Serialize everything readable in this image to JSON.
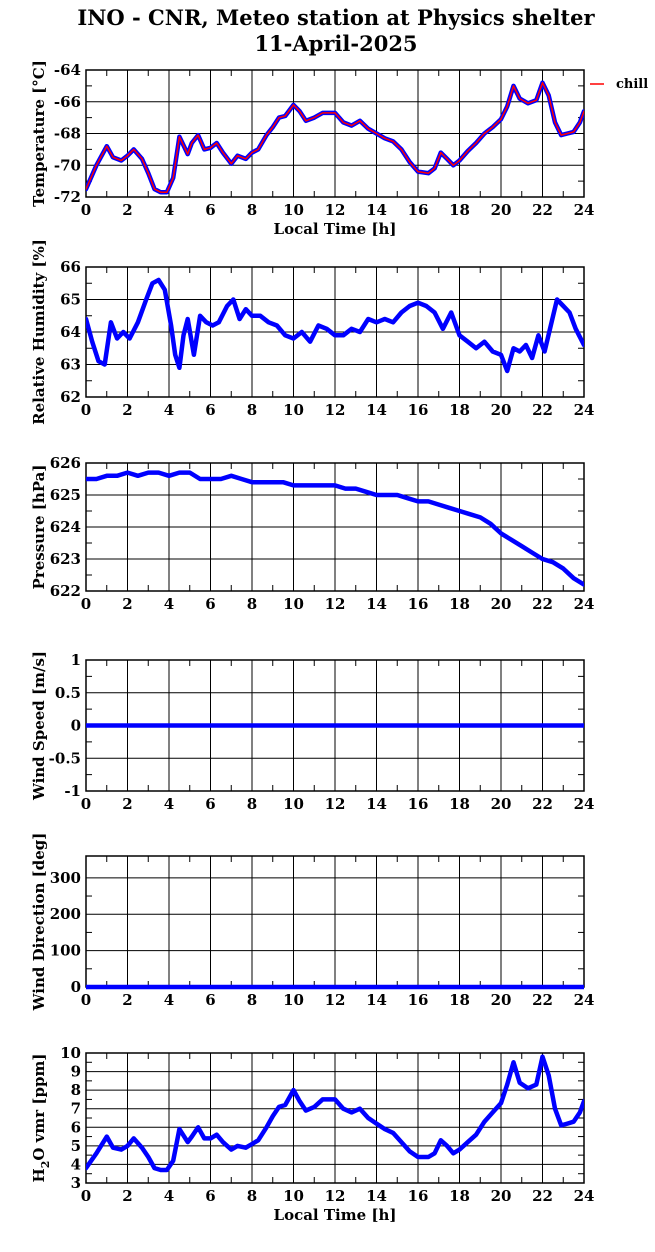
{
  "title_line1": "INO - CNR, Meteo station at Physics shelter",
  "title_line2": "11-April-2025",
  "colors": {
    "series": "#0000ff",
    "chill": "#ff0000",
    "grid": "#000000"
  },
  "chart_data": [
    {
      "type": "line",
      "ylabel": "Temperature [°C]",
      "xlabel": "Local Time [h]",
      "xlim": [
        0,
        24
      ],
      "ylim": [
        -72,
        -64
      ],
      "xticks": [
        0,
        2,
        4,
        6,
        8,
        10,
        12,
        14,
        16,
        18,
        20,
        22,
        24
      ],
      "yticks": [
        -72,
        -70,
        -68,
        -66,
        -64
      ],
      "legend": "top-right, outside plot",
      "series": [
        {
          "name": "chill",
          "color": "#ff0000",
          "x": [
            0,
            0.5,
            1,
            1.3,
            1.7,
            2,
            2.3,
            2.7,
            3,
            3.3,
            3.6,
            3.9,
            4.2,
            4.5,
            4.9,
            5.1,
            5.4,
            5.7,
            6,
            6.3,
            6.6,
            7,
            7.3,
            7.7,
            8,
            8.3,
            8.7,
            9,
            9.3,
            9.6,
            10,
            10.3,
            10.6,
            11,
            11.4,
            12,
            12.4,
            12.8,
            13.2,
            13.6,
            14,
            14.4,
            14.8,
            15.2,
            15.6,
            16,
            16.5,
            16.8,
            17.1,
            17.4,
            17.7,
            18,
            18.4,
            18.8,
            19.2,
            19.6,
            20,
            20.3,
            20.6,
            20.9,
            21.3,
            21.7,
            22,
            22.3,
            22.6,
            22.9,
            23.2,
            23.5,
            23.8,
            24
          ],
          "values": [
            -71.5,
            -70.0,
            -68.8,
            -69.5,
            -69.7,
            -69.4,
            -69.0,
            -69.6,
            -70.5,
            -71.5,
            -71.7,
            -71.7,
            -70.8,
            -68.2,
            -69.3,
            -68.6,
            -68.1,
            -69.0,
            -68.9,
            -68.6,
            -69.2,
            -69.9,
            -69.4,
            -69.6,
            -69.2,
            -69.0,
            -68.1,
            -67.6,
            -67.0,
            -66.9,
            -66.2,
            -66.6,
            -67.2,
            -67.0,
            -66.7,
            -66.7,
            -67.3,
            -67.5,
            -67.2,
            -67.7,
            -68.0,
            -68.3,
            -68.5,
            -69.0,
            -69.8,
            -70.4,
            -70.5,
            -70.2,
            -69.2,
            -69.6,
            -70.0,
            -69.7,
            -69.1,
            -68.6,
            -68.0,
            -67.6,
            -67.1,
            -66.3,
            -65.0,
            -65.8,
            -66.1,
            -65.9,
            -64.8,
            -65.6,
            -67.3,
            -68.1,
            -68.0,
            -67.9,
            -67.3,
            -66.6
          ]
        },
        {
          "name": "",
          "color": "#0000ff",
          "x": [
            0,
            0.5,
            1,
            1.3,
            1.7,
            2,
            2.3,
            2.7,
            3,
            3.3,
            3.6,
            3.9,
            4.2,
            4.5,
            4.9,
            5.1,
            5.4,
            5.7,
            6,
            6.3,
            6.6,
            7,
            7.3,
            7.7,
            8,
            8.3,
            8.7,
            9,
            9.3,
            9.6,
            10,
            10.3,
            10.6,
            11,
            11.4,
            12,
            12.4,
            12.8,
            13.2,
            13.6,
            14,
            14.4,
            14.8,
            15.2,
            15.6,
            16,
            16.5,
            16.8,
            17.1,
            17.4,
            17.7,
            18,
            18.4,
            18.8,
            19.2,
            19.6,
            20,
            20.3,
            20.6,
            20.9,
            21.3,
            21.7,
            22,
            22.3,
            22.6,
            22.9,
            23.2,
            23.5,
            23.8,
            24
          ],
          "values": [
            -71.5,
            -70.0,
            -68.8,
            -69.5,
            -69.7,
            -69.4,
            -69.0,
            -69.6,
            -70.5,
            -71.5,
            -71.7,
            -71.7,
            -70.8,
            -68.2,
            -69.3,
            -68.6,
            -68.1,
            -69.0,
            -68.9,
            -68.6,
            -69.2,
            -69.9,
            -69.4,
            -69.6,
            -69.2,
            -69.0,
            -68.1,
            -67.6,
            -67.0,
            -66.9,
            -66.2,
            -66.6,
            -67.2,
            -67.0,
            -66.7,
            -66.7,
            -67.3,
            -67.5,
            -67.2,
            -67.7,
            -68.0,
            -68.3,
            -68.5,
            -69.0,
            -69.8,
            -70.4,
            -70.5,
            -70.2,
            -69.2,
            -69.6,
            -70.0,
            -69.7,
            -69.1,
            -68.6,
            -68.0,
            -67.6,
            -67.1,
            -66.3,
            -65.0,
            -65.8,
            -66.1,
            -65.9,
            -64.8,
            -65.6,
            -67.3,
            -68.1,
            -68.0,
            -67.9,
            -67.3,
            -66.6
          ]
        }
      ]
    },
    {
      "type": "line",
      "ylabel": "Relative Humidity [%]",
      "xlabel": "",
      "xlim": [
        0,
        24
      ],
      "ylim": [
        62,
        66
      ],
      "xticks": [
        0,
        2,
        4,
        6,
        8,
        10,
        12,
        14,
        16,
        18,
        20,
        22,
        24
      ],
      "yticks": [
        62,
        63,
        64,
        65,
        66
      ],
      "series": [
        {
          "name": "",
          "color": "#0000ff",
          "x": [
            0,
            0.3,
            0.6,
            0.9,
            1.2,
            1.5,
            1.8,
            2.1,
            2.5,
            2.9,
            3.2,
            3.5,
            3.8,
            4.1,
            4.3,
            4.5,
            4.7,
            4.9,
            5.2,
            5.5,
            5.8,
            6.1,
            6.4,
            6.8,
            7.1,
            7.4,
            7.7,
            8,
            8.4,
            8.8,
            9.2,
            9.6,
            10,
            10.4,
            10.8,
            11.2,
            11.6,
            12,
            12.4,
            12.8,
            13.2,
            13.6,
            14,
            14.4,
            14.8,
            15.2,
            15.6,
            16,
            16.4,
            16.8,
            17.2,
            17.6,
            18,
            18.4,
            18.8,
            19.2,
            19.6,
            20,
            20.3,
            20.6,
            20.9,
            21.2,
            21.5,
            21.8,
            22.1,
            22.4,
            22.7,
            23,
            23.3,
            23.6,
            24
          ],
          "values": [
            64.4,
            63.7,
            63.1,
            63.0,
            64.3,
            63.8,
            64.0,
            63.8,
            64.3,
            65.0,
            65.5,
            65.6,
            65.3,
            64.2,
            63.3,
            62.9,
            63.9,
            64.4,
            63.3,
            64.5,
            64.3,
            64.2,
            64.3,
            64.8,
            65.0,
            64.4,
            64.7,
            64.5,
            64.5,
            64.3,
            64.2,
            63.9,
            63.8,
            64.0,
            63.7,
            64.2,
            64.1,
            63.9,
            63.9,
            64.1,
            64.0,
            64.4,
            64.3,
            64.4,
            64.3,
            64.6,
            64.8,
            64.9,
            64.8,
            64.6,
            64.1,
            64.6,
            63.9,
            63.7,
            63.5,
            63.7,
            63.4,
            63.3,
            62.8,
            63.5,
            63.4,
            63.6,
            63.2,
            63.9,
            63.4,
            64.2,
            65.0,
            64.8,
            64.6,
            64.1,
            63.6
          ]
        }
      ]
    },
    {
      "type": "line",
      "ylabel": "Pressure [hPa]",
      "xlabel": "",
      "xlim": [
        0,
        24
      ],
      "ylim": [
        622,
        626
      ],
      "xticks": [
        0,
        2,
        4,
        6,
        8,
        10,
        12,
        14,
        16,
        18,
        20,
        22,
        24
      ],
      "yticks": [
        622,
        623,
        624,
        625,
        626
      ],
      "series": [
        {
          "name": "",
          "color": "#0000ff",
          "x": [
            0,
            0.5,
            1,
            1.5,
            2,
            2.5,
            3,
            3.5,
            4,
            4.5,
            5,
            5.5,
            6,
            6.5,
            7,
            7.5,
            8,
            8.5,
            9,
            9.5,
            10,
            10.5,
            11,
            11.5,
            12,
            12.5,
            13,
            13.5,
            14,
            14.5,
            15,
            15.5,
            16,
            16.5,
            17,
            17.5,
            18,
            18.5,
            19,
            19.5,
            20,
            20.5,
            21,
            21.5,
            22,
            22.5,
            23,
            23.5,
            24
          ],
          "values": [
            625.5,
            625.5,
            625.6,
            625.6,
            625.7,
            625.6,
            625.7,
            625.7,
            625.6,
            625.7,
            625.7,
            625.5,
            625.5,
            625.5,
            625.6,
            625.5,
            625.4,
            625.4,
            625.4,
            625.4,
            625.3,
            625.3,
            625.3,
            625.3,
            625.3,
            625.2,
            625.2,
            625.1,
            625.0,
            625.0,
            625.0,
            624.9,
            624.8,
            624.8,
            624.7,
            624.6,
            624.5,
            624.4,
            624.3,
            624.1,
            623.8,
            623.6,
            623.4,
            623.2,
            623.0,
            622.9,
            622.7,
            622.4,
            622.2
          ]
        }
      ]
    },
    {
      "type": "line",
      "ylabel": "Wind Speed [m/s]",
      "xlabel": "",
      "xlim": [
        0,
        24
      ],
      "ylim": [
        -1,
        1
      ],
      "xticks": [
        0,
        2,
        4,
        6,
        8,
        10,
        12,
        14,
        16,
        18,
        20,
        22,
        24
      ],
      "yticks": [
        -1,
        -0.5,
        0,
        0.5,
        1
      ],
      "series": [
        {
          "name": "",
          "color": "#0000ff",
          "x": [
            0,
            24
          ],
          "values": [
            0,
            0
          ]
        }
      ]
    },
    {
      "type": "line",
      "ylabel": "Wind Direction [deg]",
      "xlabel": "",
      "xlim": [
        0,
        24
      ],
      "ylim": [
        0,
        360
      ],
      "xticks": [
        0,
        2,
        4,
        6,
        8,
        10,
        12,
        14,
        16,
        18,
        20,
        22,
        24
      ],
      "yticks": [
        0,
        100,
        200,
        300
      ],
      "series": [
        {
          "name": "",
          "color": "#0000ff",
          "x": [
            0,
            24
          ],
          "values": [
            0,
            0
          ]
        }
      ]
    },
    {
      "type": "line",
      "ylabel": "H2O vmr [ppm]",
      "xlabel": "Local Time [h]",
      "xlim": [
        0,
        24
      ],
      "ylim": [
        3,
        10
      ],
      "xticks": [
        0,
        2,
        4,
        6,
        8,
        10,
        12,
        14,
        16,
        18,
        20,
        22,
        24
      ],
      "yticks": [
        3,
        4,
        5,
        6,
        7,
        8,
        9,
        10
      ],
      "series": [
        {
          "name": "",
          "color": "#0000ff",
          "x": [
            0,
            0.5,
            1,
            1.3,
            1.7,
            2,
            2.3,
            2.7,
            3,
            3.3,
            3.6,
            3.9,
            4.2,
            4.5,
            4.9,
            5.1,
            5.4,
            5.7,
            6,
            6.3,
            6.6,
            7,
            7.3,
            7.7,
            8,
            8.3,
            8.7,
            9,
            9.3,
            9.6,
            10,
            10.3,
            10.6,
            11,
            11.4,
            12,
            12.4,
            12.8,
            13.2,
            13.6,
            14,
            14.4,
            14.8,
            15.2,
            15.6,
            16,
            16.5,
            16.8,
            17.1,
            17.4,
            17.7,
            18,
            18.4,
            18.8,
            19.2,
            19.6,
            20,
            20.3,
            20.6,
            20.9,
            21.3,
            21.7,
            22,
            22.3,
            22.6,
            22.9,
            23.2,
            23.5,
            23.8,
            24
          ],
          "values": [
            3.8,
            4.6,
            5.5,
            4.9,
            4.8,
            5.0,
            5.4,
            4.9,
            4.4,
            3.8,
            3.7,
            3.7,
            4.2,
            5.9,
            5.2,
            5.5,
            6.0,
            5.4,
            5.4,
            5.6,
            5.2,
            4.8,
            5.0,
            4.9,
            5.1,
            5.3,
            6.0,
            6.6,
            7.1,
            7.2,
            8.0,
            7.4,
            6.9,
            7.1,
            7.5,
            7.5,
            7.0,
            6.8,
            7.0,
            6.5,
            6.2,
            5.9,
            5.7,
            5.2,
            4.7,
            4.4,
            4.4,
            4.6,
            5.3,
            5.0,
            4.6,
            4.8,
            5.2,
            5.6,
            6.3,
            6.8,
            7.3,
            8.3,
            9.5,
            8.4,
            8.1,
            8.3,
            9.8,
            8.8,
            7.0,
            6.1,
            6.2,
            6.3,
            6.8,
            7.4
          ]
        }
      ]
    }
  ]
}
